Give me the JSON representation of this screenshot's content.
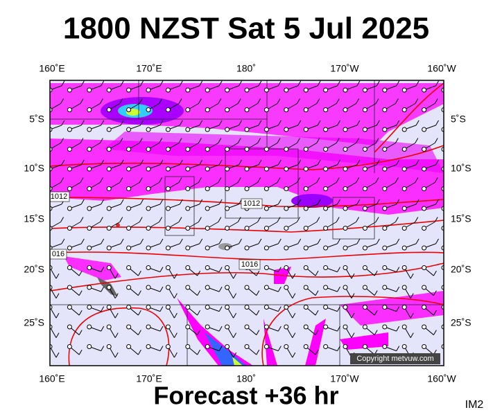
{
  "header": {
    "title": "1800 NZST Sat 5 Jul 2025"
  },
  "footer": {
    "forecast": "Forecast +36 hr",
    "code": "IM2"
  },
  "map": {
    "lon_labels": [
      "160˚E",
      "170˚E",
      "180˚",
      "170˚W",
      "160˚W"
    ],
    "lat_labels": [
      "5˚S",
      "10˚S",
      "15˚S",
      "20˚S",
      "25˚S"
    ],
    "isobar_labels": [
      "1012",
      "1012",
      "016",
      "1016"
    ],
    "copyright": "Copyright metvuw.com"
  }
}
